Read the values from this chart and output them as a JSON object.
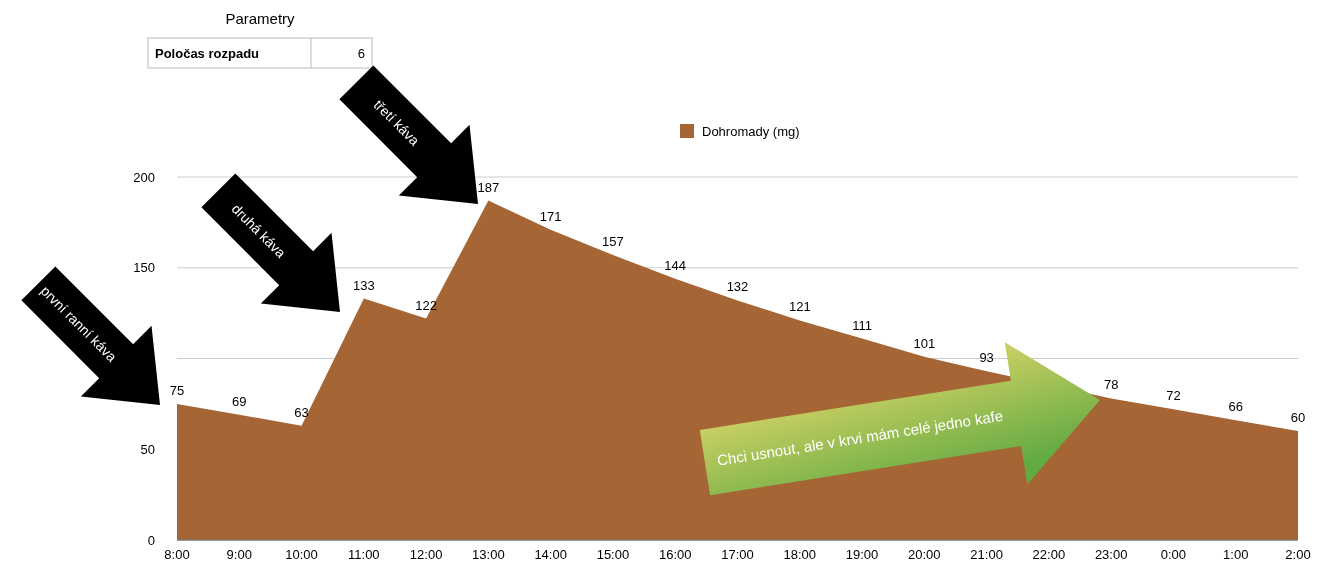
{
  "chart_data": {
    "type": "area",
    "categories": [
      "8:00",
      "9:00",
      "10:00",
      "11:00",
      "12:00",
      "13:00",
      "14:00",
      "15:00",
      "16:00",
      "17:00",
      "18:00",
      "19:00",
      "20:00",
      "21:00",
      "22:00",
      "23:00",
      "0:00",
      "1:00",
      "2:00"
    ],
    "series": [
      {
        "name": "Dohromady (mg)",
        "color": "#a66534",
        "values": [
          75,
          69,
          63,
          133,
          122,
          187,
          171,
          157,
          144,
          132,
          121,
          111,
          101,
          93,
          null,
          78,
          72,
          66,
          60
        ],
        "value_labels": [
          "75",
          "69",
          "63",
          "133",
          "122",
          "187",
          "171",
          "157",
          "144",
          "132",
          "121",
          "111",
          "101",
          "93",
          null,
          "78",
          "72",
          "66",
          "60"
        ]
      }
    ],
    "ylim": [
      0,
      200
    ],
    "yticks": [
      0,
      50,
      {
        "value": 100,
        "label": null
      },
      150,
      200
    ],
    "grid": "y",
    "legend": "top",
    "annotations": [
      "Parametry",
      "Poločas rozpadu",
      "6",
      "první ranní káva",
      "druhá káva",
      "třetí káva",
      "Chci usnout, ale v krvi mám celé jedno kafe"
    ]
  }
}
